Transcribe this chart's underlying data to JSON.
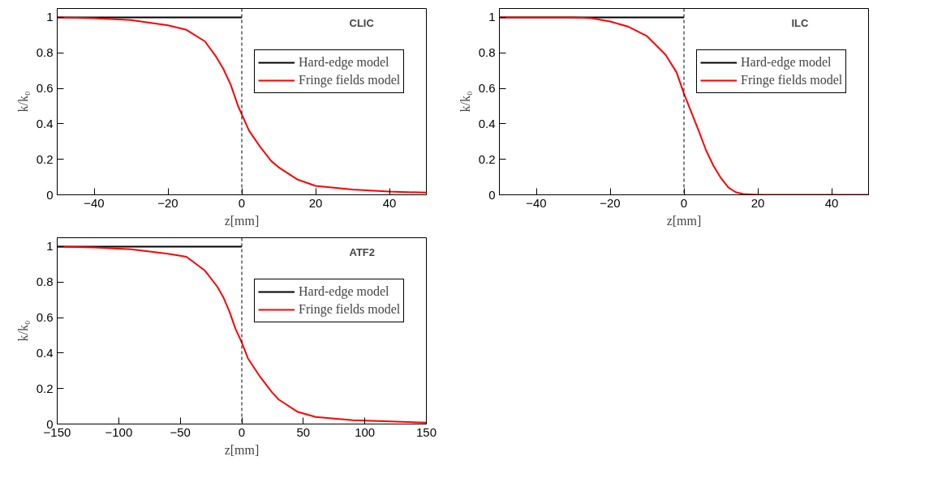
{
  "chart_data": [
    {
      "type": "line",
      "title": "CLIC",
      "xlabel": "z[mm]",
      "ylabel": "k/k₀",
      "xlim": [
        -50,
        50
      ],
      "xticks": [
        -40,
        -20,
        0,
        20,
        40
      ],
      "ylim": [
        0,
        1.05
      ],
      "yticks": [
        0,
        0.2,
        0.4,
        0.6,
        0.8,
        1
      ],
      "legend": "top right",
      "grid": false,
      "ref_lines": [
        {
          "axis": "x",
          "value": 0,
          "color": "#000000",
          "line_style": "dashed"
        }
      ],
      "series": [
        {
          "name": "Hard-edge model",
          "color": "#000000",
          "x": [
            -50,
            0
          ],
          "values": [
            1,
            1
          ]
        },
        {
          "name": "Fringe fields model",
          "color": "#ff0000",
          "x": [
            -50,
            -40,
            -30,
            -20,
            -15,
            -10,
            -7,
            -5,
            -3,
            -1,
            0,
            2,
            5,
            8,
            10,
            15,
            20,
            30,
            40,
            50
          ],
          "values": [
            1,
            0.995,
            0.985,
            0.955,
            0.93,
            0.865,
            0.78,
            0.71,
            0.62,
            0.5,
            0.454,
            0.36,
            0.27,
            0.19,
            0.155,
            0.087,
            0.05,
            0.03,
            0.018,
            0.012
          ]
        }
      ]
    },
    {
      "type": "line",
      "title": "ILC",
      "xlabel": "z[mm]",
      "ylabel": "k/k₀",
      "xlim": [
        -50,
        50
      ],
      "xticks": [
        -40,
        -20,
        0,
        20,
        40
      ],
      "ylim": [
        0,
        1.05
      ],
      "yticks": [
        0,
        0.2,
        0.4,
        0.6,
        0.8,
        1
      ],
      "legend": "top right",
      "grid": false,
      "ref_lines": [
        {
          "axis": "x",
          "value": 0,
          "color": "#000000",
          "line_style": "dashed"
        }
      ],
      "series": [
        {
          "name": "Hard-edge model",
          "color": "#000000",
          "x": [
            -50,
            0
          ],
          "values": [
            1,
            1
          ]
        },
        {
          "name": "Fringe fields model",
          "color": "#ff0000",
          "x": [
            -50,
            -30,
            -25,
            -20,
            -15,
            -10,
            -5,
            -2,
            0,
            2,
            4,
            6,
            8,
            10,
            12,
            14,
            16,
            20,
            50
          ],
          "values": [
            1,
            1,
            0.995,
            0.977,
            0.947,
            0.894,
            0.79,
            0.69,
            0.57,
            0.465,
            0.36,
            0.25,
            0.163,
            0.095,
            0.042,
            0.015,
            0.005,
            0,
            0
          ]
        }
      ]
    },
    {
      "type": "line",
      "title": "ATF2",
      "xlabel": "z[mm]",
      "ylabel": "k/k₀",
      "xlim": [
        -150,
        150
      ],
      "xticks": [
        -150,
        -100,
        -50,
        0,
        50,
        100,
        150
      ],
      "ylim": [
        0,
        1.05
      ],
      "yticks": [
        0,
        0.2,
        0.4,
        0.6,
        0.8,
        1
      ],
      "legend": "top right",
      "grid": false,
      "ref_lines": [
        {
          "axis": "x",
          "value": 0,
          "color": "#000000",
          "line_style": "dashed"
        }
      ],
      "series": [
        {
          "name": "Hard-edge model",
          "color": "#000000",
          "x": [
            -150,
            0
          ],
          "values": [
            1,
            1
          ]
        },
        {
          "name": "Fringe fields model",
          "color": "#ff0000",
          "x": [
            -150,
            -120,
            -90,
            -60,
            -45,
            -30,
            -20,
            -15,
            -10,
            -5,
            0,
            5,
            15,
            25,
            30,
            45,
            60,
            90,
            120,
            150
          ],
          "values": [
            1,
            0.995,
            0.985,
            0.96,
            0.943,
            0.865,
            0.775,
            0.715,
            0.633,
            0.535,
            0.46,
            0.37,
            0.265,
            0.175,
            0.138,
            0.07,
            0.04,
            0.022,
            0.015,
            0.008
          ]
        }
      ]
    }
  ]
}
